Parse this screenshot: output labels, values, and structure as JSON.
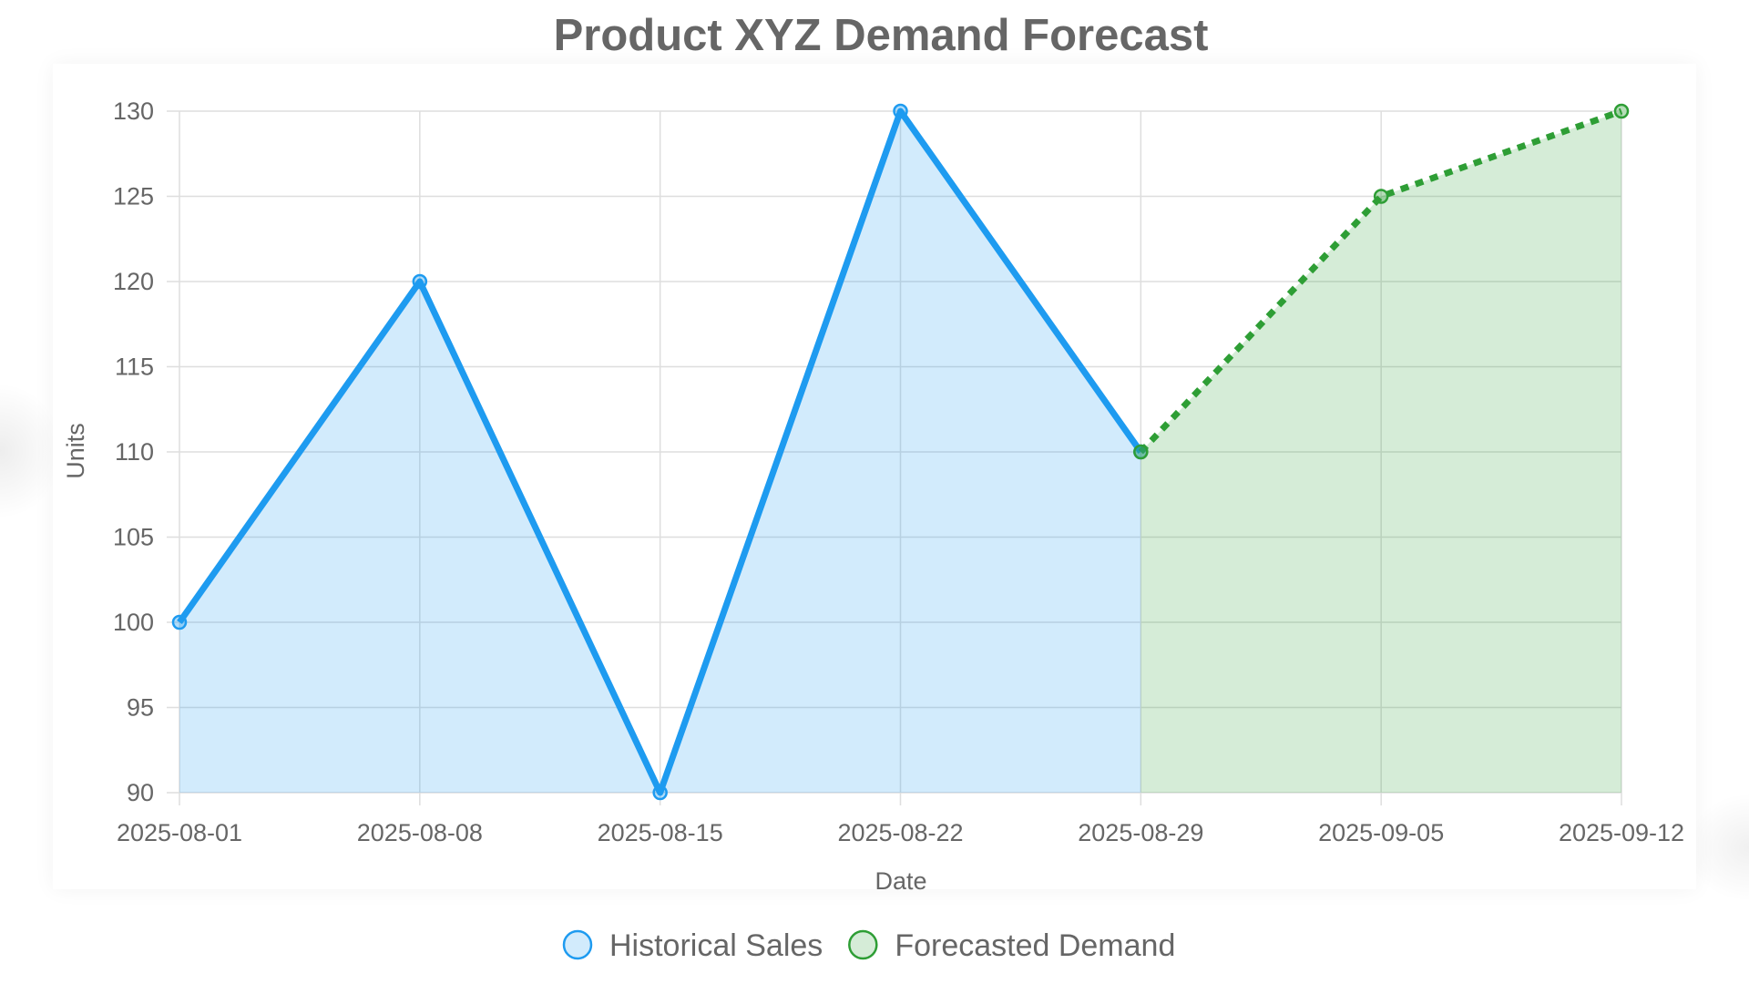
{
  "chart_data": {
    "type": "line",
    "title": "Product XYZ Demand Forecast",
    "xlabel": "Date",
    "ylabel": "Units",
    "x": [
      "2025-08-01",
      "2025-08-08",
      "2025-08-15",
      "2025-08-22",
      "2025-08-29",
      "2025-09-05",
      "2025-09-12"
    ],
    "ylim": [
      90,
      130
    ],
    "yticks": [
      90,
      95,
      100,
      105,
      110,
      115,
      120,
      125,
      130
    ],
    "grid": true,
    "legend_position": "bottom",
    "series": [
      {
        "name": "Historical Sales",
        "color": "#1e9bf0",
        "fill": "rgba(30,155,240,0.2)",
        "style": "solid",
        "points": [
          {
            "x": "2025-08-01",
            "y": 100
          },
          {
            "x": "2025-08-08",
            "y": 120
          },
          {
            "x": "2025-08-15",
            "y": 90
          },
          {
            "x": "2025-08-22",
            "y": 130
          },
          {
            "x": "2025-08-29",
            "y": 110
          }
        ]
      },
      {
        "name": "Forecasted Demand",
        "color": "#2e9e35",
        "fill": "rgba(46,158,53,0.2)",
        "style": "dashed",
        "points": [
          {
            "x": "2025-08-29",
            "y": 110
          },
          {
            "x": "2025-09-05",
            "y": 125
          },
          {
            "x": "2025-09-12",
            "y": 130
          }
        ]
      }
    ]
  }
}
